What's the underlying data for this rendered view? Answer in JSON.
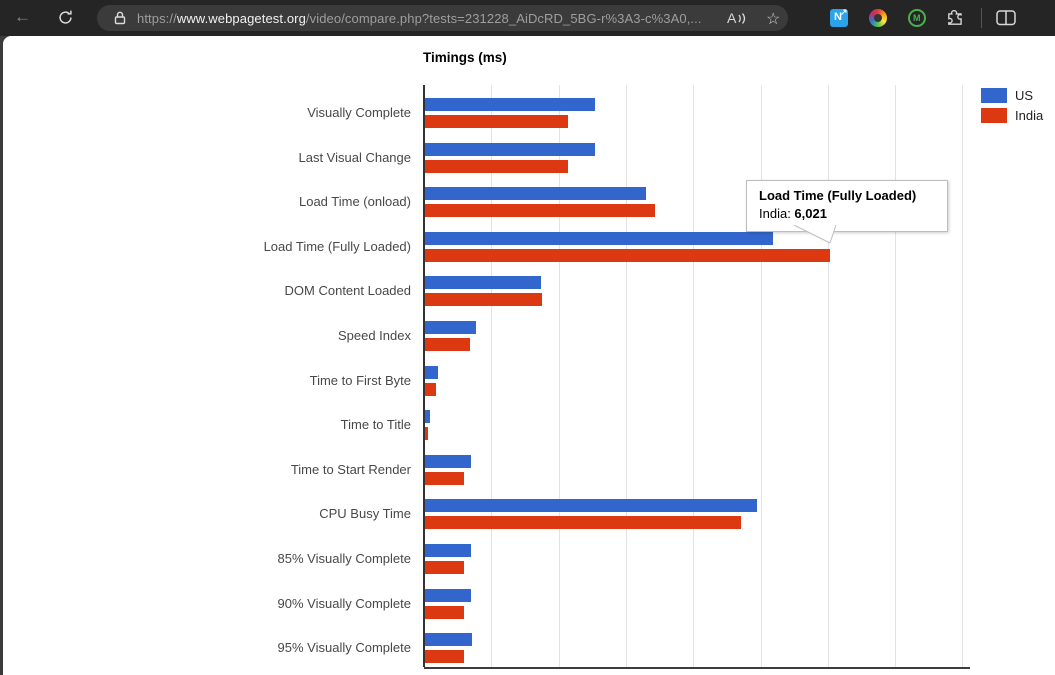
{
  "browser": {
    "url": {
      "scheme": "https://",
      "domain": "www.webpagetest.org",
      "path": "/video/compare.php?tests=231228_AiDcRD_5BG-r%3A3-c%3A0,..."
    },
    "icons": {
      "back_glyph": "←",
      "star_glyph": "☆",
      "read_aloud_label": "A",
      "extension_n_label": "N",
      "extension_n_arrow": "↗",
      "extension_m_label": "M"
    }
  },
  "chart_data": {
    "type": "bar",
    "orientation": "horizontal",
    "title": "Timings (ms)",
    "xlabel": "",
    "ylabel": "",
    "xlim": [
      0,
      8000
    ],
    "gridline_step": 1000,
    "grid": true,
    "legend_position": "top-right",
    "categories": [
      "Visually Complete",
      "Last Visual Change",
      "Load Time (onload)",
      "Load Time (Fully Loaded)",
      "DOM Content Loaded",
      "Speed Index",
      "Time to First Byte",
      "Time to Title",
      "Time to Start Render",
      "CPU Busy Time",
      "85% Visually Complete",
      "90% Visually Complete",
      "95% Visually Complete"
    ],
    "series": [
      {
        "name": "US",
        "color": "#3366CC",
        "values": [
          2520,
          2520,
          3280,
          5170,
          1730,
          765,
          195,
          70,
          680,
          4940,
          680,
          690,
          695
        ]
      },
      {
        "name": "India",
        "color": "#DC3912",
        "values": [
          2120,
          2120,
          3415,
          6021,
          1745,
          670,
          170,
          50,
          580,
          4690,
          580,
          580,
          580
        ]
      }
    ],
    "tooltip": {
      "title": "Load Time (Fully Loaded)",
      "series_label": "India: ",
      "value": "6,021"
    }
  }
}
